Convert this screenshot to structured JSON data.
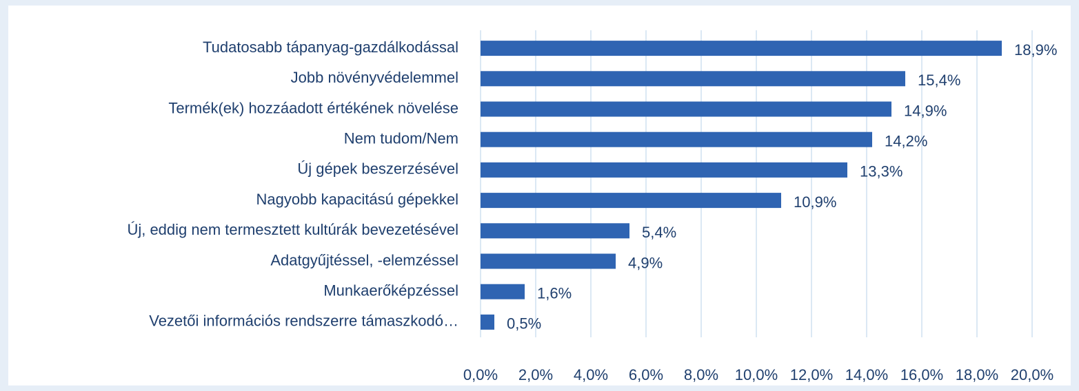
{
  "chart_data": {
    "type": "bar",
    "orientation": "horizontal",
    "categories": [
      "Tudatosabb tápanyag-gazdálkodással",
      "Jobb növényvédelemmel",
      "Termék(ek) hozzáadott értékének növelése",
      "Nem tudom/Nem",
      "Új gépek beszerzésével",
      "Nagyobb kapacitású gépekkel",
      "Új, eddig nem termesztett kultúrák bevezetésével",
      "Adatgyűjtéssel, -elemzéssel",
      "Munkaerőképzéssel",
      "Vezetői információs rendszerre támaszkodó…"
    ],
    "values": [
      18.9,
      15.4,
      14.9,
      14.2,
      13.3,
      10.9,
      5.4,
      4.9,
      1.6,
      0.5
    ],
    "value_labels": [
      "18,9%",
      "15,4%",
      "14,9%",
      "14,2%",
      "13,3%",
      "10,9%",
      "5,4%",
      "4,9%",
      "1,6%",
      "0,5%"
    ],
    "color": "#2f64b2",
    "xlim": [
      0,
      20
    ],
    "xticks": [
      {
        "value": 0,
        "label": "0,0%"
      },
      {
        "value": 2,
        "label": "2,0%"
      },
      {
        "value": 4,
        "label": "4,0%"
      },
      {
        "value": 6,
        "label": "6,0%"
      },
      {
        "value": 8,
        "label": "8,0%"
      },
      {
        "value": 10,
        "label": "10,0%"
      },
      {
        "value": 12,
        "label": "12,0%"
      },
      {
        "value": 14,
        "label": "14,0%"
      },
      {
        "value": 16,
        "label": "16,0%"
      },
      {
        "value": 18,
        "label": "18,0%"
      },
      {
        "value": 20,
        "label": "20,0%"
      }
    ],
    "grid": true
  }
}
